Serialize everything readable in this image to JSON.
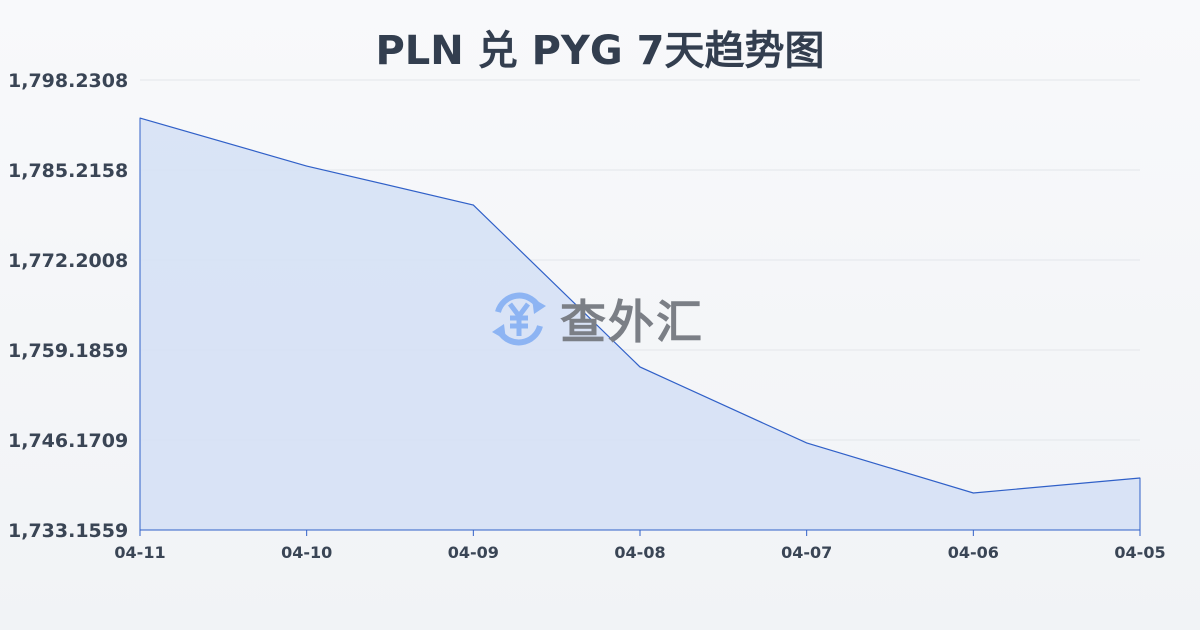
{
  "chart_data": {
    "type": "area",
    "title": "PLN 兑 PYG 7天趋势图",
    "xlabel": "",
    "ylabel": "",
    "categories": [
      "04-11",
      "04-10",
      "04-09",
      "04-08",
      "04-07",
      "04-06",
      "04-05"
    ],
    "series": [
      {
        "values": [
          1792.73,
          1785.79,
          1780.15,
          1756.73,
          1745.74,
          1738.51,
          1740.68
        ]
      }
    ],
    "ylim": [
      1733.1559,
      1798.2308
    ],
    "yticks": [
      "1,798.2308",
      "1,785.2158",
      "1,772.2008",
      "1,759.1859",
      "1,746.1709",
      "1,733.1559"
    ],
    "grid": true,
    "colors": {
      "line": "#3060c8",
      "fill": "#d6e1f5",
      "grid": "#e3e6ea"
    }
  },
  "watermark": {
    "text": "查外汇",
    "icon": "yen-exchange-icon",
    "color": "#6fa0f0"
  }
}
